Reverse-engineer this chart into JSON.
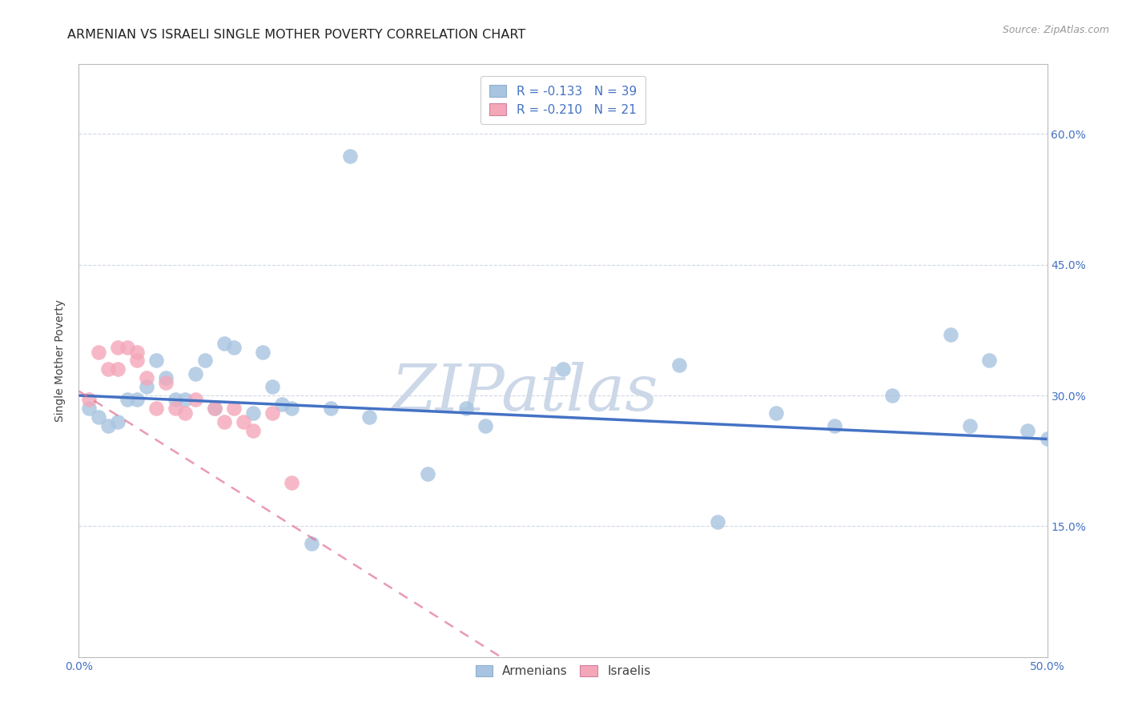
{
  "title": "ARMENIAN VS ISRAELI SINGLE MOTHER POVERTY CORRELATION CHART",
  "source": "Source: ZipAtlas.com",
  "ylabel": "Single Mother Poverty",
  "xlim": [
    0.0,
    0.5
  ],
  "ylim": [
    0.0,
    0.68
  ],
  "xticks": [
    0.0,
    0.1,
    0.2,
    0.3,
    0.4,
    0.5
  ],
  "xticklabels": [
    "0.0%",
    "",
    "",
    "",
    "",
    "50.0%"
  ],
  "ytick_positions": [
    0.15,
    0.3,
    0.45,
    0.6
  ],
  "ytick_labels": [
    "15.0%",
    "30.0%",
    "45.0%",
    "60.0%"
  ],
  "armenian_color": "#a8c4e0",
  "israeli_color": "#f4a7b9",
  "armenian_label": "Armenians",
  "israeli_label": "Israelis",
  "legend_r_armenian": "R = -0.133",
  "legend_n_armenian": "N = 39",
  "legend_r_israeli": "R = -0.210",
  "legend_n_israeli": "N = 21",
  "armenian_x": [
    0.005,
    0.01,
    0.015,
    0.02,
    0.025,
    0.03,
    0.035,
    0.04,
    0.045,
    0.05,
    0.055,
    0.06,
    0.065,
    0.07,
    0.075,
    0.08,
    0.09,
    0.095,
    0.1,
    0.105,
    0.11,
    0.12,
    0.13,
    0.15,
    0.18,
    0.2,
    0.21,
    0.25,
    0.31,
    0.33,
    0.36,
    0.39,
    0.42,
    0.45,
    0.46,
    0.47,
    0.49,
    0.5,
    0.14
  ],
  "armenian_y": [
    0.285,
    0.275,
    0.265,
    0.27,
    0.295,
    0.295,
    0.31,
    0.34,
    0.32,
    0.295,
    0.295,
    0.325,
    0.34,
    0.285,
    0.36,
    0.355,
    0.28,
    0.35,
    0.31,
    0.29,
    0.285,
    0.13,
    0.285,
    0.275,
    0.21,
    0.285,
    0.265,
    0.33,
    0.335,
    0.155,
    0.28,
    0.265,
    0.3,
    0.37,
    0.265,
    0.34,
    0.26,
    0.25,
    0.575
  ],
  "israeli_x": [
    0.005,
    0.01,
    0.015,
    0.02,
    0.02,
    0.025,
    0.03,
    0.03,
    0.035,
    0.04,
    0.045,
    0.05,
    0.055,
    0.06,
    0.07,
    0.075,
    0.08,
    0.085,
    0.09,
    0.1,
    0.11
  ],
  "israeli_y": [
    0.295,
    0.35,
    0.33,
    0.355,
    0.33,
    0.355,
    0.34,
    0.35,
    0.32,
    0.285,
    0.315,
    0.285,
    0.28,
    0.295,
    0.285,
    0.27,
    0.285,
    0.27,
    0.26,
    0.28,
    0.2
  ],
  "watermark_text": "ZIPatlas",
  "watermark_color": "#ccd8e8",
  "grid_color": "#d0d8e4",
  "trend_armenian_color": "#4472c4",
  "trend_israeli_color": "#e07090",
  "background_color": "#ffffff",
  "title_fontsize": 11.5,
  "axis_label_fontsize": 10,
  "tick_fontsize": 10,
  "source_fontsize": 9,
  "trend_armenian_start_y": 0.3,
  "trend_armenian_end_y": 0.25,
  "trend_israeli_start_y": 0.305,
  "trend_israeli_slope": -1.4
}
